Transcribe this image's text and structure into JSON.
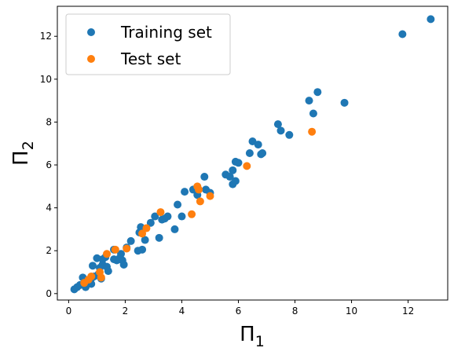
{
  "chart_data": {
    "type": "scatter",
    "title": "",
    "xlabel": "Π",
    "xlabel_sub": "1",
    "ylabel": "Π",
    "ylabel_sub": "2",
    "xlim": [
      -0.4,
      13.4
    ],
    "ylim": [
      -0.3,
      13.4
    ],
    "xticks": [
      0,
      2,
      4,
      6,
      8,
      10,
      12
    ],
    "yticks": [
      0,
      2,
      4,
      6,
      8,
      10,
      12
    ],
    "grid": false,
    "legend_position": "top-left",
    "series": [
      {
        "name": "Training set",
        "color": "#1f77b4",
        "points": [
          [
            0.2,
            0.2
          ],
          [
            0.3,
            0.3
          ],
          [
            0.4,
            0.4
          ],
          [
            0.5,
            0.75
          ],
          [
            0.6,
            0.6
          ],
          [
            0.6,
            0.3
          ],
          [
            0.7,
            0.5
          ],
          [
            0.8,
            0.7
          ],
          [
            0.8,
            0.45
          ],
          [
            0.85,
            1.3
          ],
          [
            0.9,
            0.8
          ],
          [
            1.0,
            1.65
          ],
          [
            1.05,
            0.9
          ],
          [
            1.1,
            1.2
          ],
          [
            1.15,
            0.7
          ],
          [
            1.2,
            1.6
          ],
          [
            1.2,
            1.35
          ],
          [
            1.3,
            1.7
          ],
          [
            1.35,
            1.25
          ],
          [
            1.4,
            1.05
          ],
          [
            1.6,
            2.05
          ],
          [
            1.6,
            1.6
          ],
          [
            1.7,
            1.55
          ],
          [
            1.8,
            1.65
          ],
          [
            1.85,
            1.85
          ],
          [
            1.9,
            1.55
          ],
          [
            1.95,
            1.35
          ],
          [
            2.05,
            2.15
          ],
          [
            2.2,
            2.45
          ],
          [
            2.45,
            2.0
          ],
          [
            2.5,
            2.85
          ],
          [
            2.55,
            3.1
          ],
          [
            2.6,
            2.05
          ],
          [
            2.7,
            2.5
          ],
          [
            2.9,
            3.3
          ],
          [
            3.05,
            3.6
          ],
          [
            3.2,
            2.6
          ],
          [
            3.3,
            3.45
          ],
          [
            3.4,
            3.5
          ],
          [
            3.5,
            3.6
          ],
          [
            3.75,
            3.0
          ],
          [
            3.85,
            4.15
          ],
          [
            4.0,
            3.6
          ],
          [
            4.1,
            4.75
          ],
          [
            4.4,
            4.85
          ],
          [
            4.55,
            4.6
          ],
          [
            4.8,
            5.45
          ],
          [
            4.85,
            4.85
          ],
          [
            5.0,
            4.7
          ],
          [
            5.55,
            5.55
          ],
          [
            5.7,
            5.45
          ],
          [
            5.8,
            5.1
          ],
          [
            5.8,
            5.75
          ],
          [
            5.9,
            5.25
          ],
          [
            5.9,
            6.15
          ],
          [
            6.0,
            6.1
          ],
          [
            6.4,
            6.55
          ],
          [
            6.5,
            7.1
          ],
          [
            6.7,
            6.95
          ],
          [
            6.8,
            6.5
          ],
          [
            6.85,
            6.55
          ],
          [
            7.4,
            7.9
          ],
          [
            7.5,
            7.6
          ],
          [
            7.8,
            7.4
          ],
          [
            8.5,
            9.0
          ],
          [
            8.65,
            8.4
          ],
          [
            8.8,
            9.4
          ],
          [
            9.75,
            8.9
          ],
          [
            11.8,
            12.1
          ],
          [
            12.8,
            12.8
          ]
        ]
      },
      {
        "name": "Test set",
        "color": "#ff7f0e",
        "points": [
          [
            0.55,
            0.5
          ],
          [
            0.7,
            0.65
          ],
          [
            0.8,
            0.8
          ],
          [
            1.1,
            1.0
          ],
          [
            1.15,
            0.75
          ],
          [
            1.35,
            1.85
          ],
          [
            1.65,
            2.05
          ],
          [
            2.05,
            2.1
          ],
          [
            2.6,
            2.8
          ],
          [
            2.75,
            3.05
          ],
          [
            3.25,
            3.8
          ],
          [
            4.35,
            3.7
          ],
          [
            4.55,
            5.0
          ],
          [
            4.6,
            4.85
          ],
          [
            4.65,
            4.3
          ],
          [
            5.0,
            4.55
          ],
          [
            6.3,
            5.95
          ],
          [
            8.6,
            7.55
          ]
        ]
      }
    ]
  }
}
